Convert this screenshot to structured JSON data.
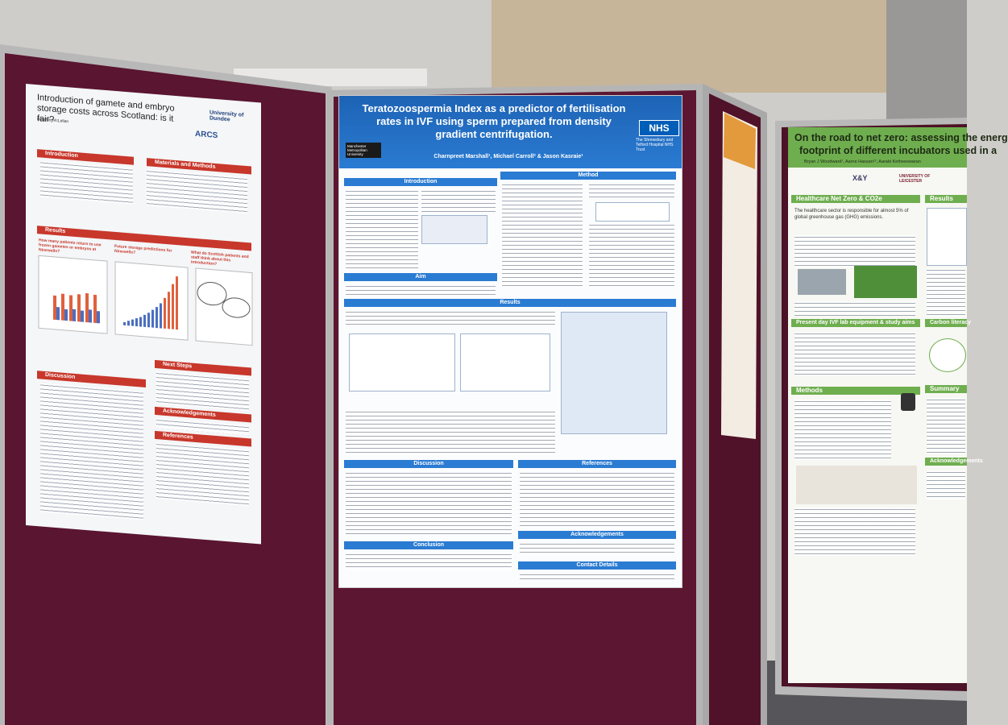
{
  "posters": [
    {
      "title": "Introduction of gamete and embryo storage costs across Scotland: is it fair?",
      "authors": "Heather McLellan",
      "logos": [
        "University of Dundee",
        "ARCS"
      ],
      "sections": [
        "Introduction",
        "Materials and Methods",
        "Results",
        "Discussion",
        "Next Steps",
        "Acknowledgements",
        "References"
      ],
      "questions": [
        "How many patients return to use frozen gametes or embryos at Ninewells?",
        "Future storage predictions for Ninewells?",
        "What do Scottish patients and staff think about this introduction?"
      ]
    },
    {
      "title": "Teratozoospermia Index as a predictor of fertilisation rates in IVF using sperm prepared from density gradient centrifugation.",
      "authors": "Charnpreet Marshall¹, Michael Carroll² & Jason Kasraie¹",
      "logos": [
        "NHS",
        "The Shrewsbury and Telford Hospital NHS Trust",
        "Manchester Metropolitan University"
      ],
      "sections": [
        "Introduction",
        "Method",
        "Aim",
        "Results",
        "Discussion",
        "References",
        "Conclusion",
        "Acknowledgements",
        "Contact Details"
      ]
    },
    {
      "title_lines": [
        "On the road to net zero: assessing the energ",
        "footprint of different incubators used in a"
      ],
      "authors": "Bryan J Woodward¹, Aarne Hassan¹², Aarabi Ketheeswaran",
      "logos": [
        "X&Y",
        "UNIVERSITY OF LEICESTER"
      ],
      "sections": [
        "Healthcare Net Zero & CO2e",
        "Results",
        "Present day IVF lab equipment & study aims",
        "Carbon literacy",
        "Methods",
        "Summary",
        "Acknowledgements"
      ],
      "lead_text": "The healthcare sector is responsible for almost 5% of global greenhouse gas (GHG) emissions."
    }
  ]
}
